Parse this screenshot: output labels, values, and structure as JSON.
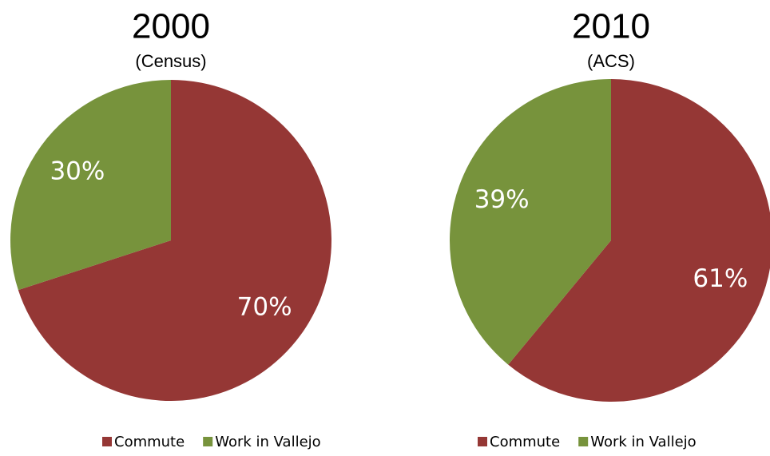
{
  "chart_data": [
    {
      "type": "pie",
      "title": "2000",
      "subtitle": "(Census)",
      "categories": [
        "Commute",
        "Work in Vallejo"
      ],
      "values": [
        70,
        30
      ],
      "value_labels": [
        "70%",
        "30%"
      ],
      "colors": [
        "#953735",
        "#77933c"
      ]
    },
    {
      "type": "pie",
      "title": "2010",
      "subtitle": "(ACS)",
      "categories": [
        "Commute",
        "Work in Vallejo"
      ],
      "values": [
        61,
        39
      ],
      "value_labels": [
        "61%",
        "39%"
      ],
      "colors": [
        "#953735",
        "#77933c"
      ]
    }
  ]
}
